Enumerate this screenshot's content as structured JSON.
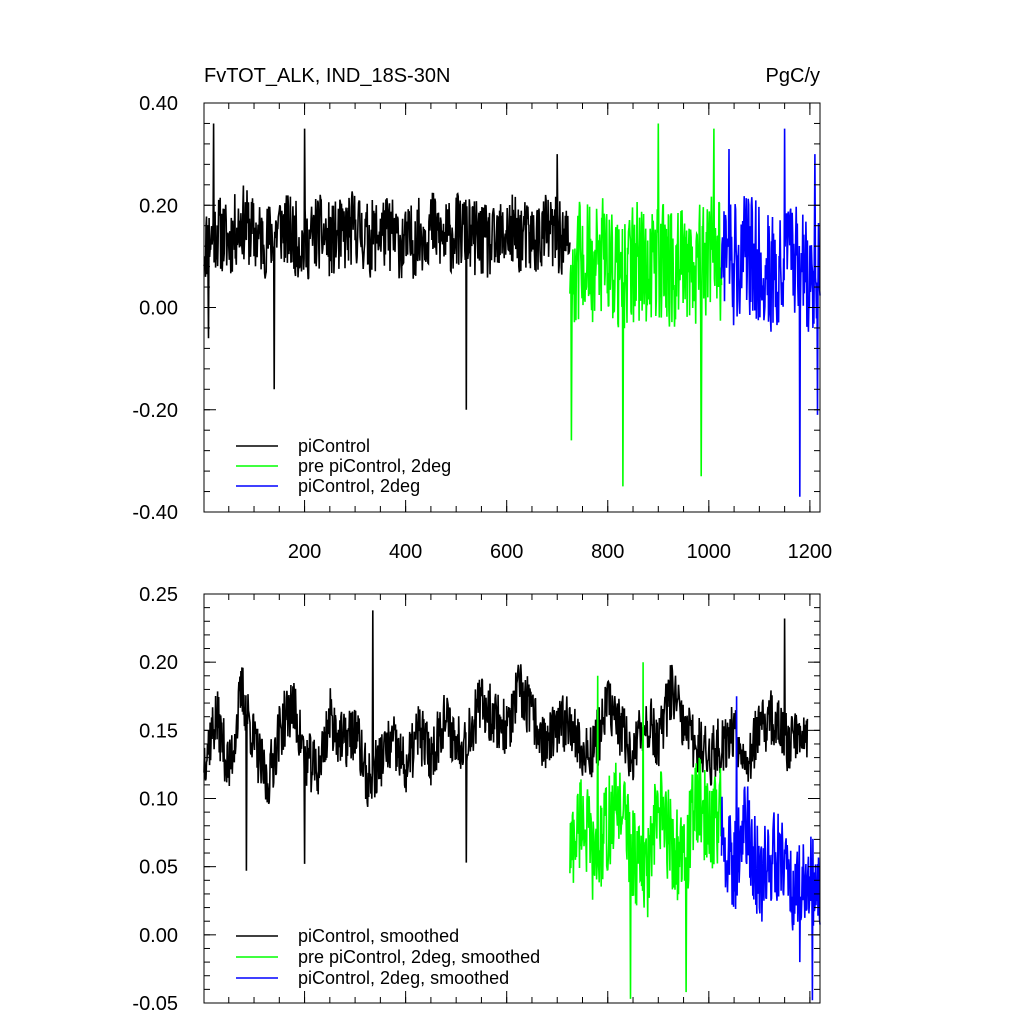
{
  "chart_data": [
    {
      "type": "line",
      "title": "FvTOT_ALK, IND_18S-30N",
      "units": "PgC/y",
      "xlim": [
        1,
        1220
      ],
      "ylim": [
        -0.4,
        0.4
      ],
      "xticks": [
        200,
        400,
        600,
        800,
        1000,
        1200
      ],
      "xtick_labels": [
        "200",
        "400",
        "600",
        "800",
        "1000",
        "1200"
      ],
      "yticks": [
        -0.4,
        -0.2,
        0.0,
        0.2,
        0.4
      ],
      "ytick_labels": [
        "-0.40",
        "-0.20",
        "0.00",
        "0.20",
        "0.40"
      ],
      "legend_position": "bottom-left",
      "series": [
        {
          "name": "piControl",
          "color": "#000000",
          "x_range": [
            1,
            725
          ],
          "sample_interval": 25,
          "values": [
            0.12,
            0.15,
            0.13,
            0.17,
            0.14,
            0.13,
            0.16,
            0.14,
            0.12,
            0.15,
            0.13,
            0.14,
            0.16,
            0.13,
            0.15,
            0.14,
            0.12,
            0.14,
            0.16,
            0.13,
            0.15,
            0.14,
            0.13,
            0.12,
            0.15,
            0.14,
            0.13,
            0.15,
            0.14,
            0.12
          ],
          "extremes": [
            [
              10,
              -0.06
            ],
            [
              20,
              0.36
            ],
            [
              140,
              -0.16
            ],
            [
              200,
              0.35
            ],
            [
              520,
              -0.2
            ],
            [
              700,
              0.3
            ]
          ]
        },
        {
          "name": "pre piControl, 2deg",
          "color": "#00ff00",
          "x_range": [
            725,
            1025
          ],
          "sample_interval": 25,
          "values": [
            0.08,
            0.1,
            0.07,
            0.11,
            0.06,
            0.09,
            0.08,
            0.1,
            0.07,
            0.09,
            0.08,
            0.11,
            0.09
          ],
          "extremes": [
            [
              728,
              -0.26
            ],
            [
              830,
              -0.35
            ],
            [
              900,
              0.36
            ],
            [
              985,
              -0.33
            ],
            [
              1010,
              0.35
            ]
          ]
        },
        {
          "name": "piControl, 2deg",
          "color": "#0000ff",
          "x_range": [
            1025,
            1220
          ],
          "sample_interval": 25,
          "values": [
            0.1,
            0.08,
            0.11,
            0.09,
            0.07,
            0.1,
            0.08,
            0.06,
            0.09
          ],
          "extremes": [
            [
              1040,
              0.31
            ],
            [
              1150,
              0.35
            ],
            [
              1180,
              -0.37
            ],
            [
              1210,
              0.3
            ],
            [
              1215,
              -0.21
            ]
          ]
        }
      ]
    },
    {
      "type": "line",
      "title": "",
      "xlim": [
        1,
        1220
      ],
      "ylim": [
        -0.05,
        0.25
      ],
      "xticks": [
        200,
        400,
        600,
        800,
        1000,
        1200
      ],
      "yticks": [
        -0.05,
        0.0,
        0.05,
        0.1,
        0.15,
        0.2,
        0.25
      ],
      "ytick_labels": [
        "-0.05",
        "0.00",
        "0.05",
        "0.10",
        "0.15",
        "0.20",
        "0.25"
      ],
      "legend_position": "bottom-left",
      "series": [
        {
          "name": "piControl, smoothed",
          "color": "#000000",
          "x_range": [
            1,
            1195
          ],
          "sample_interval": 25,
          "values": [
            0.13,
            0.16,
            0.12,
            0.18,
            0.14,
            0.11,
            0.15,
            0.17,
            0.13,
            0.12,
            0.16,
            0.14,
            0.15,
            0.11,
            0.13,
            0.14,
            0.12,
            0.15,
            0.13,
            0.16,
            0.14,
            0.15,
            0.17,
            0.16,
            0.15,
            0.18,
            0.16,
            0.14,
            0.15,
            0.16,
            0.13,
            0.14,
            0.17,
            0.15,
            0.13,
            0.16,
            0.14,
            0.18,
            0.15,
            0.14,
            0.13,
            0.14,
            0.15,
            0.13,
            0.15,
            0.16,
            0.14,
            0.15
          ],
          "extremes": [
            [
              85,
              0.047
            ],
            [
              200,
              0.052
            ],
            [
              335,
              0.238
            ],
            [
              520,
              0.053
            ],
            [
              1150,
              0.232
            ]
          ]
        },
        {
          "name": "pre piControl, 2deg, smoothed",
          "color": "#00ff00",
          "x_range": [
            725,
            1025
          ],
          "sample_interval": 25,
          "values": [
            0.06,
            0.09,
            0.05,
            0.08,
            0.1,
            0.06,
            0.04,
            0.09,
            0.07,
            0.05,
            0.1,
            0.08,
            0.09
          ],
          "extremes": [
            [
              780,
              0.19
            ],
            [
              870,
              0.2
            ],
            [
              845,
              -0.047
            ],
            [
              955,
              -0.042
            ]
          ]
        },
        {
          "name": "piControl, 2deg, smoothed",
          "color": "#0000ff",
          "x_range": [
            1025,
            1220
          ],
          "sample_interval": 25,
          "values": [
            0.07,
            0.05,
            0.08,
            0.04,
            0.06,
            0.05,
            0.03,
            0.04,
            0.02
          ],
          "extremes": [
            [
              1055,
              0.175
            ],
            [
              1180,
              -0.02
            ],
            [
              1205,
              -0.048
            ]
          ]
        }
      ]
    }
  ]
}
